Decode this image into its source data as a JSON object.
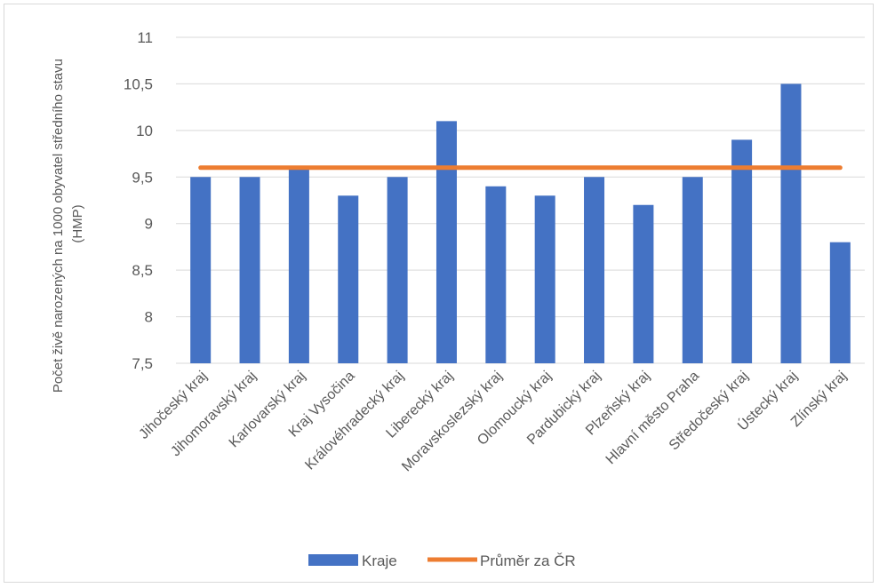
{
  "chart_data": {
    "type": "bar",
    "title": "",
    "xlabel": "",
    "ylabel": "Počet živě narozených na 1000 obyvatel středního stavu (HMP)",
    "ylabel_lines": [
      "Počet živě narozených na 1000 obyvatel středního stavu",
      "(HMP)"
    ],
    "ylim": [
      7.5,
      11
    ],
    "yticks": [
      "7,5",
      "8",
      "8,5",
      "9",
      "9,5",
      "10",
      "10,5",
      "11"
    ],
    "ytick_values": [
      7.5,
      8,
      8.5,
      9,
      9.5,
      10,
      10.5,
      11
    ],
    "grid": true,
    "legend_position": "bottom",
    "categories": [
      "Jihočeský kraj",
      "Jihomoravský kraj",
      "Karlovarský kraj",
      "Kraj Vysočina",
      "Královéhradecký kraj",
      "Liberecký kraj",
      "Moravskoslezský kraj",
      "Olomoucký kraj",
      "Pardubický kraj",
      "Plzeňský kraj",
      "Hlavní město Praha",
      "Středočeský kraj",
      "Ústecký kraj",
      "Zlínský kraj"
    ],
    "series": [
      {
        "name": "Kraje",
        "kind": "bar",
        "color": "#4472C4",
        "values": [
          9.5,
          9.5,
          9.6,
          9.3,
          9.5,
          10.1,
          9.4,
          9.3,
          9.5,
          9.2,
          9.5,
          9.9,
          10.5,
          8.8
        ]
      },
      {
        "name": "Průměr za ČR",
        "kind": "line",
        "color": "#ED7D31",
        "values": [
          9.6,
          9.6,
          9.6,
          9.6,
          9.6,
          9.6,
          9.6,
          9.6,
          9.6,
          9.6,
          9.6,
          9.6,
          9.6,
          9.6
        ]
      }
    ]
  }
}
